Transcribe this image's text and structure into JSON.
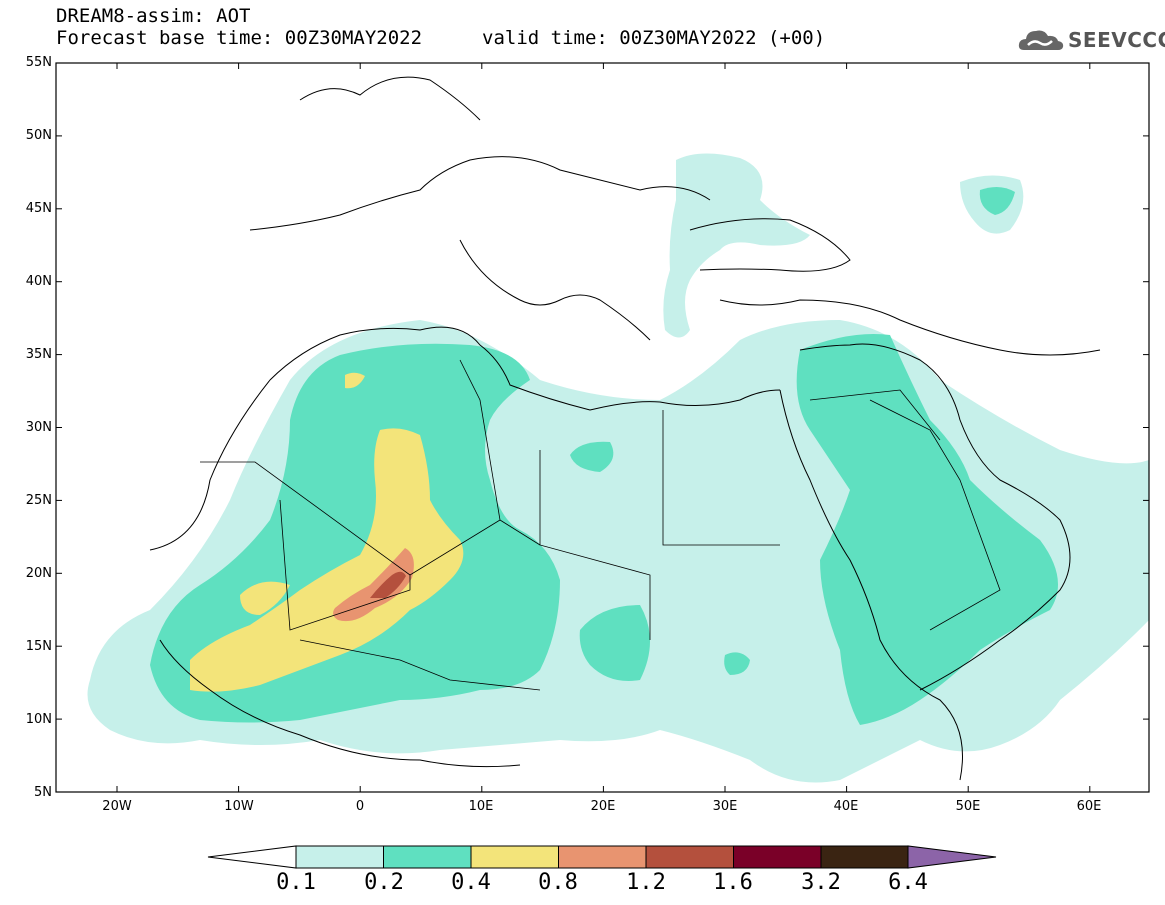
{
  "header": {
    "title_line1": "DREAM8-assim: AOT",
    "title_line2": "Forecast base time: 00Z30MAY2022",
    "valid_time": "valid time: 00Z30MAY2022 (+00)",
    "logo_text": "SEEVCCC",
    "logo_icon": "cloud-icon"
  },
  "axes": {
    "lat_labels": [
      "55N",
      "50N",
      "45N",
      "40N",
      "35N",
      "30N",
      "25N",
      "20N",
      "15N",
      "10N",
      "5N"
    ],
    "lon_labels": [
      "20W",
      "10W",
      "0",
      "10E",
      "20E",
      "30E",
      "40E",
      "50E",
      "60E"
    ]
  },
  "colorbar": {
    "labels": [
      "0.1",
      "0.2",
      "0.4",
      "0.8",
      "1.2",
      "1.6",
      "3.2",
      "6.4"
    ],
    "colors": [
      "#c6f0ea",
      "#5fe0c0",
      "#f3e47a",
      "#e89470",
      "#b4503d",
      "#7a0028",
      "#3a2412",
      "#8c64a8"
    ]
  },
  "colors": {
    "lvl1": "#c6f0ea",
    "lvl2": "#5fe0c0",
    "lvl3": "#f3e47a",
    "lvl4": "#e89470",
    "lvl5": "#b4503d"
  }
}
